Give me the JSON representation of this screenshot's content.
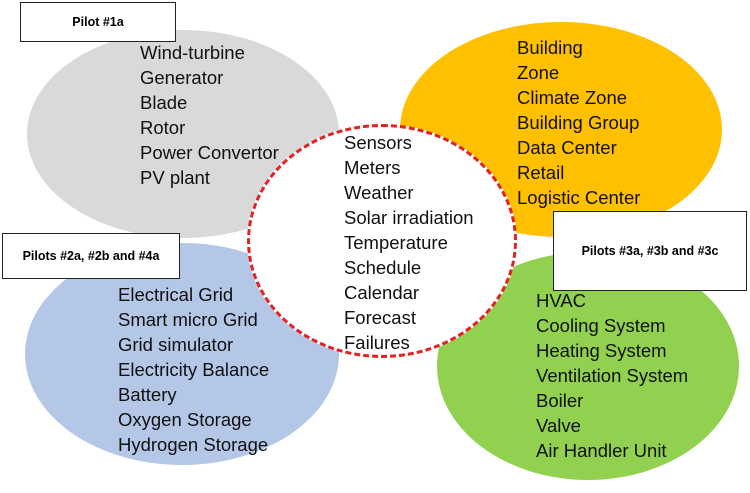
{
  "diagram": {
    "pilot_labels": {
      "pilot_1a": "Pilot #1a",
      "pilots_2": "Pilots #2a, #2b and #4a",
      "pilots_3": "Pilots #3a, #3b and #3c"
    },
    "grey_group": {
      "color": "#d9d9d9",
      "items": [
        "Wind-turbine",
        "Generator",
        "Blade",
        "Rotor",
        "Power Convertor",
        "PV plant"
      ]
    },
    "amber_group": {
      "color": "#ffc000",
      "items": [
        "Building",
        "Zone",
        "Climate Zone",
        "Building Group",
        "Data Center",
        "Retail",
        "Logistic Center"
      ]
    },
    "center_group": {
      "border_color": "#e32222",
      "items": [
        "Sensors",
        "Meters",
        "Weather",
        "Solar irradiation",
        "Temperature",
        "Schedule",
        "Calendar",
        "Forecast",
        "Failures"
      ]
    },
    "blue_group": {
      "color": "#b4c7e7",
      "items": [
        "Electrical Grid",
        "Smart micro Grid",
        "Grid simulator",
        "Electricity Balance",
        "Battery",
        "Oxygen Storage",
        "Hydrogen Storage"
      ]
    },
    "green_group": {
      "color": "#92d050",
      "items": [
        "HVAC",
        "Cooling System",
        "Heating System",
        "Ventilation System",
        "Boiler",
        "Valve",
        "Air Handler Unit"
      ]
    }
  }
}
